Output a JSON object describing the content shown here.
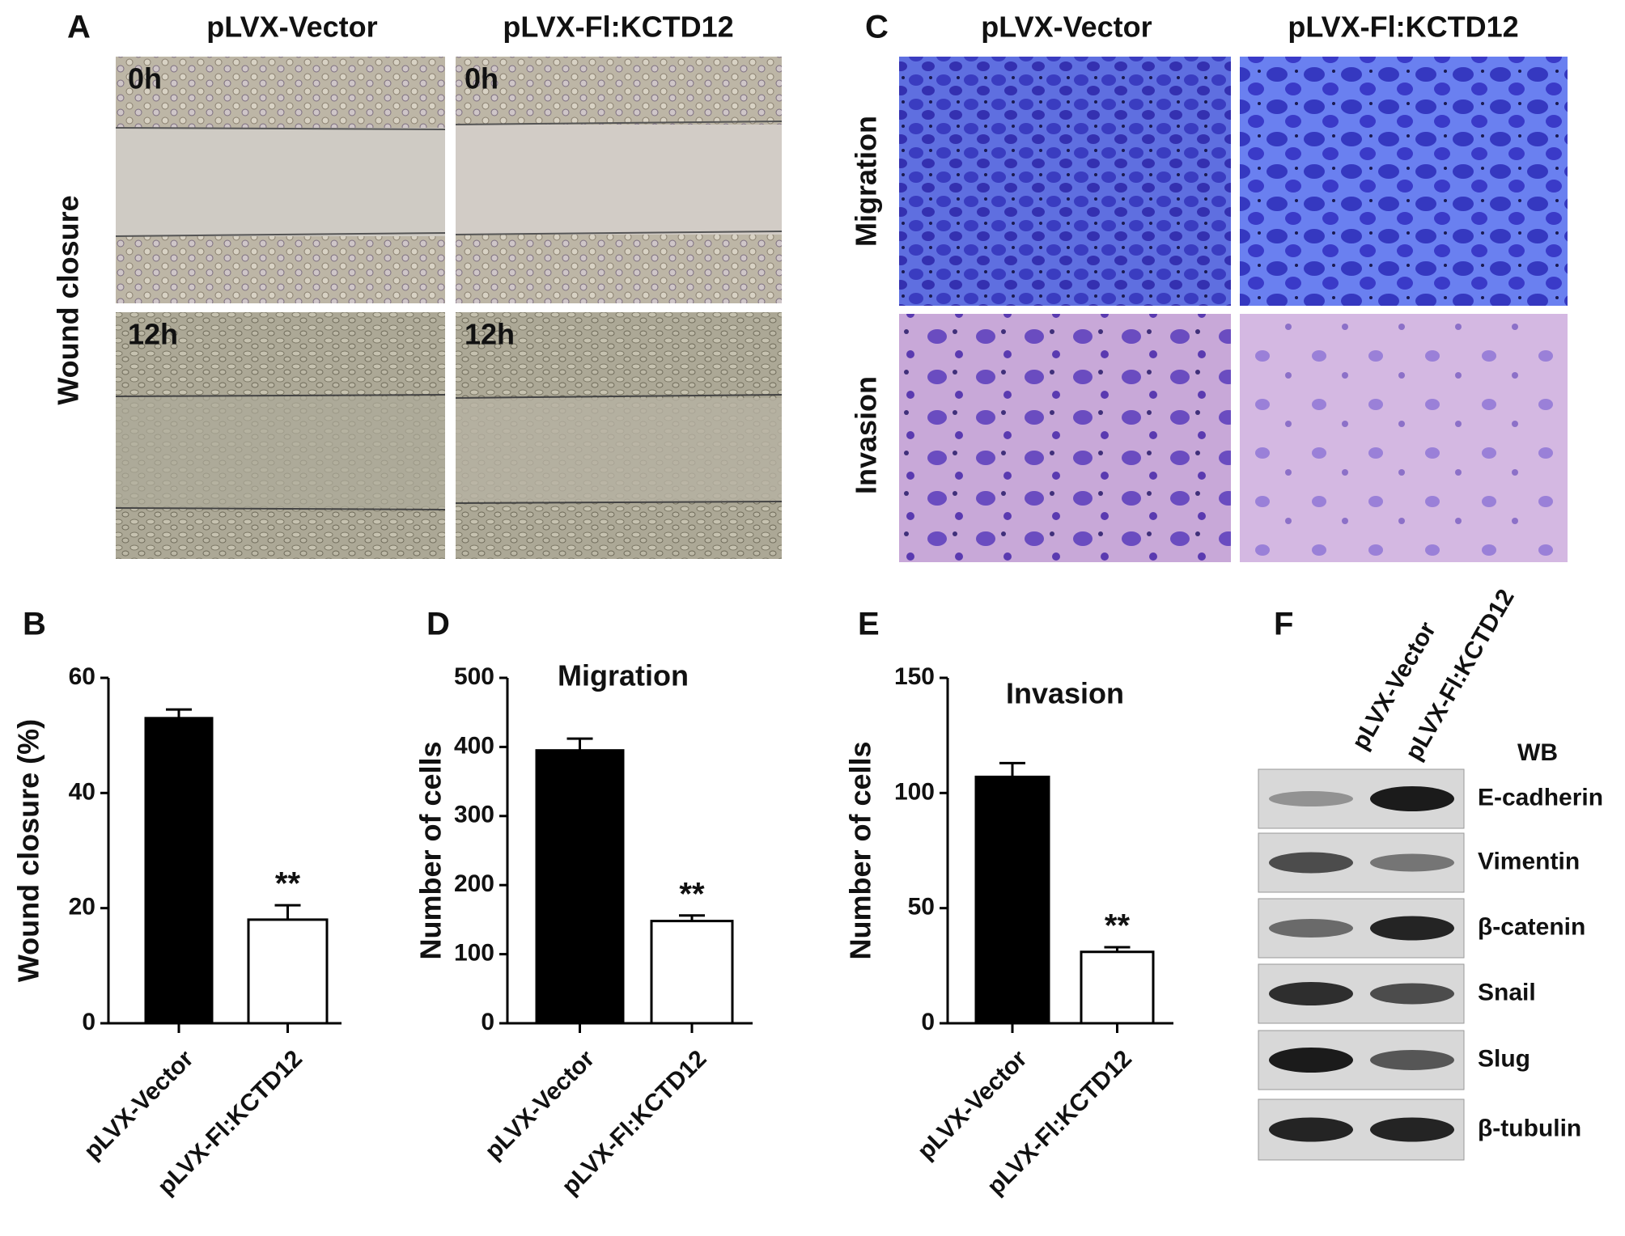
{
  "panels": {
    "A": {
      "label": "A",
      "columns": [
        "pLVX-Vector",
        "pLVX-Fl:KCTD12"
      ],
      "row_label": "Wound closure",
      "time_labels": [
        "0h",
        "12h"
      ]
    },
    "C": {
      "label": "C",
      "columns": [
        "pLVX-Vector",
        "pLVX-Fl:KCTD12"
      ],
      "rows": [
        "Migration",
        "Invasion"
      ]
    },
    "F": {
      "label": "F",
      "lanes": [
        "pLVX-Vector",
        "pLVX-Fl:KCTD12"
      ],
      "header": "WB",
      "bands": [
        "E-cadherin",
        "Vimentin",
        "β-catenin",
        "Snail",
        "Slug",
        "β-tubulin"
      ]
    }
  },
  "chart_data": [
    {
      "type": "bar",
      "label": "B",
      "y_label": "Wound closure (%)",
      "categories": [
        "pLVX-Vector",
        "pLVX-Fl:KCTD12"
      ],
      "values": [
        53,
        18
      ],
      "errors": [
        1.5,
        2.5
      ],
      "colors": [
        "#000000",
        "#ffffff"
      ],
      "annotation": "**",
      "ylim": [
        0,
        60
      ],
      "yticks": [
        0,
        20,
        40,
        60
      ]
    },
    {
      "type": "bar",
      "label": "D",
      "title": "Migration",
      "y_label": "Number of cells",
      "categories": [
        "pLVX-Vector",
        "pLVX-Fl:KCTD12"
      ],
      "values": [
        395,
        148
      ],
      "errors": [
        17,
        8
      ],
      "colors": [
        "#000000",
        "#ffffff"
      ],
      "annotation": "**",
      "ylim": [
        0,
        500
      ],
      "yticks": [
        0,
        100,
        200,
        300,
        400,
        500
      ]
    },
    {
      "type": "bar",
      "label": "E",
      "title": "Invasion",
      "y_label": "Number of cells",
      "categories": [
        "pLVX-Vector",
        "pLVX-Fl:KCTD12"
      ],
      "values": [
        107,
        31
      ],
      "errors": [
        6,
        2
      ],
      "colors": [
        "#000000",
        "#ffffff"
      ],
      "annotation": "**",
      "ylim": [
        0,
        150
      ],
      "yticks": [
        0,
        50,
        100,
        150
      ]
    }
  ]
}
